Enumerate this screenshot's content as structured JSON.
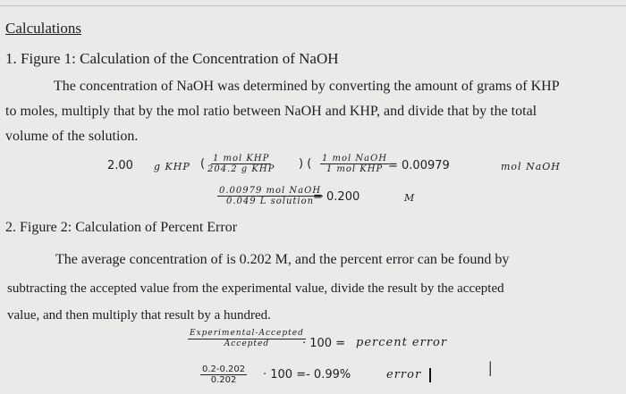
{
  "heading": "Calculations",
  "figure1": {
    "title": "1. Figure 1: Calculation of the Concentration of NaOH",
    "para": [
      "The concentration of NaOH was determined by converting the amount of grams of KHP",
      "to moles, multiply that by the mol ratio between NaOH and KHP, and divide that by the total",
      "volume of the solution."
    ],
    "eq1": {
      "lead": "2.00",
      "unit": "g  KHP",
      "f1_num": "1 mol KHP",
      "f1_den": "204.2 g KHP",
      "f2_num": "1 mol NaOH",
      "f2_den": "1 mol KHP",
      "result": "= 0.00979",
      "result_unit": "mol  NaOH"
    },
    "eq2": {
      "num": "0.00979 mol NaOH",
      "den": "0.049 L solution",
      "result": "= 0.200",
      "unit": "M"
    }
  },
  "figure2": {
    "title": "2. Figure 2: Calculation of Percent Error",
    "para": [
      "The average concentration of is 0.202 M, and the percent error can be found by",
      "subtracting the accepted value from the experimental value, divide the result by the accepted",
      "value, and then multiply that result by a hundred."
    ],
    "eq1": {
      "num": "Experimental-Accepted",
      "den": "Accepted",
      "mid": "· 100 =",
      "result": "percent  error"
    },
    "eq2": {
      "num": "0.2-0.202",
      "den": "0.202",
      "mid": "· 100 =- 0.99%",
      "result": "error"
    }
  },
  "text_cursor_icon": "I-beam"
}
